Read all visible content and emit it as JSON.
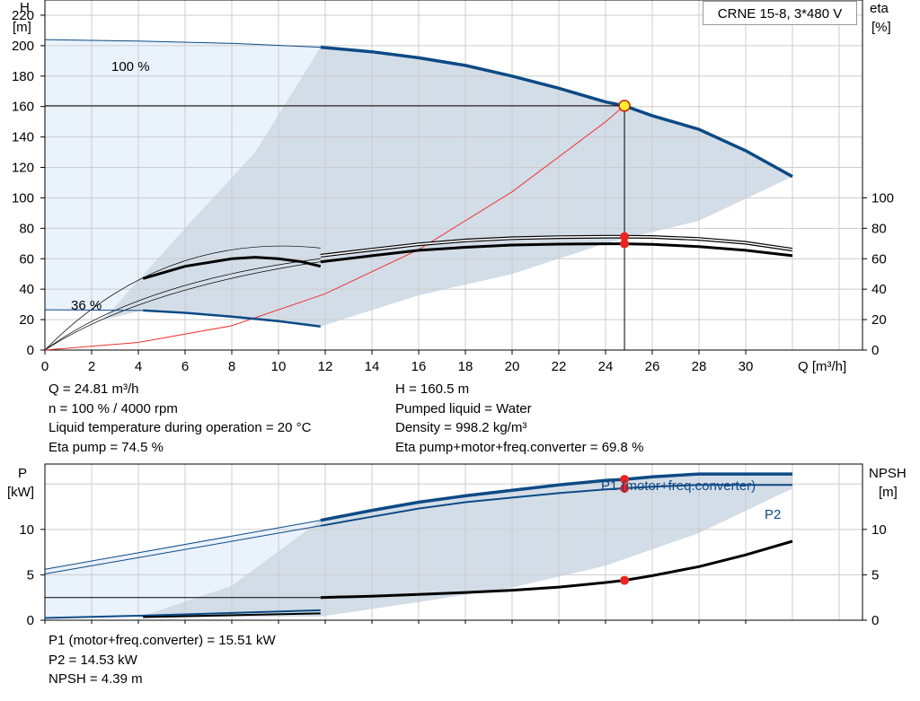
{
  "legend": {
    "model": "CRNE 15-8, 3*480 V"
  },
  "info_top_left": [
    "Q = 24.81 m³/h",
    "n = 100 % / 4000 rpm",
    "Liquid temperature during operation = 20 °C",
    "Eta pump = 74.5 %"
  ],
  "info_top_right": [
    "H = 160.5 m",
    "Pumped liquid = Water",
    "Density = 998.2 kg/m³",
    "Eta pump+motor+freq.converter = 69.8 %"
  ],
  "info_bottom": [
    "P1 (motor+freq.converter) = 15.51 kW",
    "P2 = 14.53 kW",
    "NPSH = 4.39 m"
  ],
  "colors": {
    "curve_blue": "#0d4a85",
    "area_fill": "#d3dde8",
    "area_light": "#eaf2fb",
    "grid": "#cccccc",
    "marker_red": "#ee2222",
    "marker_yellow": "#ffee33",
    "system_curve": "#ee3333"
  },
  "chart_data": [
    {
      "type": "line",
      "xlabel": "Q [m³/h]",
      "ylabel": "H\n[m]",
      "y2label": "eta\n[%]",
      "xlim": [
        0,
        35
      ],
      "ylim": [
        0,
        230
      ],
      "y2lim": [
        0,
        230
      ],
      "xticks": [
        0,
        2,
        4,
        6,
        8,
        10,
        12,
        14,
        16,
        18,
        20,
        22,
        24,
        26,
        28,
        30
      ],
      "yticks": [
        0,
        20,
        40,
        60,
        80,
        100,
        120,
        140,
        160,
        180,
        200,
        220
      ],
      "y2ticks": [
        0,
        20,
        40,
        60,
        80,
        100
      ],
      "annotations": [
        "100 %",
        "36 %"
      ],
      "series": [
        {
          "id": "H_100_extrap",
          "x": [
            0,
            4,
            8,
            11.8
          ],
          "y": [
            204,
            203,
            201.5,
            199
          ]
        },
        {
          "id": "H_100",
          "x": [
            11.8,
            14,
            16,
            18,
            20,
            22,
            24,
            24.8,
            26,
            28,
            30,
            32
          ],
          "y": [
            199,
            196,
            192,
            187,
            180,
            172,
            163,
            160.5,
            154,
            145,
            131,
            114
          ]
        },
        {
          "id": "H_36",
          "x": [
            0,
            4.2,
            6,
            8,
            10,
            11.8
          ],
          "y": [
            26.5,
            26,
            24.5,
            22,
            19,
            15.5
          ]
        },
        {
          "id": "eta_pump",
          "x": [
            11.8,
            14,
            16,
            18,
            20,
            22,
            24,
            24.8,
            26,
            28,
            30,
            32
          ],
          "y": [
            62,
            66,
            69.5,
            72,
            73.5,
            74.2,
            74.5,
            74.5,
            74.3,
            73,
            70.5,
            66
          ]
        },
        {
          "id": "eta_total",
          "x": [
            11.8,
            14,
            16,
            18,
            20,
            22,
            24,
            24.8,
            26,
            28,
            30,
            32
          ],
          "y": [
            58,
            62,
            65.5,
            67.5,
            69,
            69.6,
            69.8,
            69.8,
            69.4,
            68,
            65.5,
            62
          ]
        },
        {
          "id": "eta_pump_36",
          "x": [
            4.2,
            6,
            8,
            9,
            10,
            11,
            11.8
          ],
          "y": [
            47,
            55,
            60,
            61,
            60,
            58,
            55
          ]
        },
        {
          "id": "system_curve",
          "x": [
            0,
            4,
            8,
            12,
            16,
            20,
            24,
            24.8
          ],
          "y": [
            0,
            5,
            16,
            37,
            66,
            104,
            150,
            160.5
          ]
        }
      ],
      "operating_point": {
        "Q": 24.81,
        "H": 160.5,
        "eta_pump": 74.5,
        "eta_total": 69.8
      }
    },
    {
      "type": "line",
      "ylabel": "P\n[kW]",
      "y2label": "NPSH\n[m]",
      "xlim": [
        0,
        35
      ],
      "ylim": [
        0,
        17.2
      ],
      "yticks": [
        0,
        5,
        10
      ],
      "y2ticks": [
        0,
        5,
        10
      ],
      "series": [
        {
          "id": "P1",
          "name": "P1 (motor+freq.converter)",
          "x": [
            11.8,
            14,
            16,
            18,
            20,
            22,
            24,
            24.8,
            26,
            28,
            30,
            32
          ],
          "y": [
            11,
            12.1,
            13,
            13.7,
            14.3,
            14.9,
            15.4,
            15.51,
            15.8,
            16.1,
            16.1,
            16.1
          ]
        },
        {
          "id": "P2",
          "name": "P2",
          "x": [
            11.8,
            14,
            16,
            18,
            20,
            22,
            24,
            24.8,
            26,
            28,
            30,
            32
          ],
          "y": [
            10.4,
            11.4,
            12.3,
            13,
            13.5,
            14,
            14.4,
            14.53,
            14.7,
            14.9,
            14.9,
            14.9
          ]
        },
        {
          "id": "NPSH",
          "name": "NPSH",
          "x": [
            11.8,
            14,
            16,
            18,
            20,
            22,
            24,
            24.8,
            26,
            28,
            30,
            32
          ],
          "y": [
            2.5,
            2.65,
            2.85,
            3.05,
            3.3,
            3.65,
            4.15,
            4.39,
            4.9,
            5.9,
            7.2,
            8.7
          ]
        },
        {
          "id": "P1_36",
          "x": [
            0,
            4.2,
            11.8
          ],
          "y": [
            0.25,
            0.5,
            1.1
          ]
        }
      ],
      "operating_point": {
        "Q": 24.81,
        "P1": 15.51,
        "P2": 14.53,
        "NPSH": 4.39
      }
    }
  ]
}
